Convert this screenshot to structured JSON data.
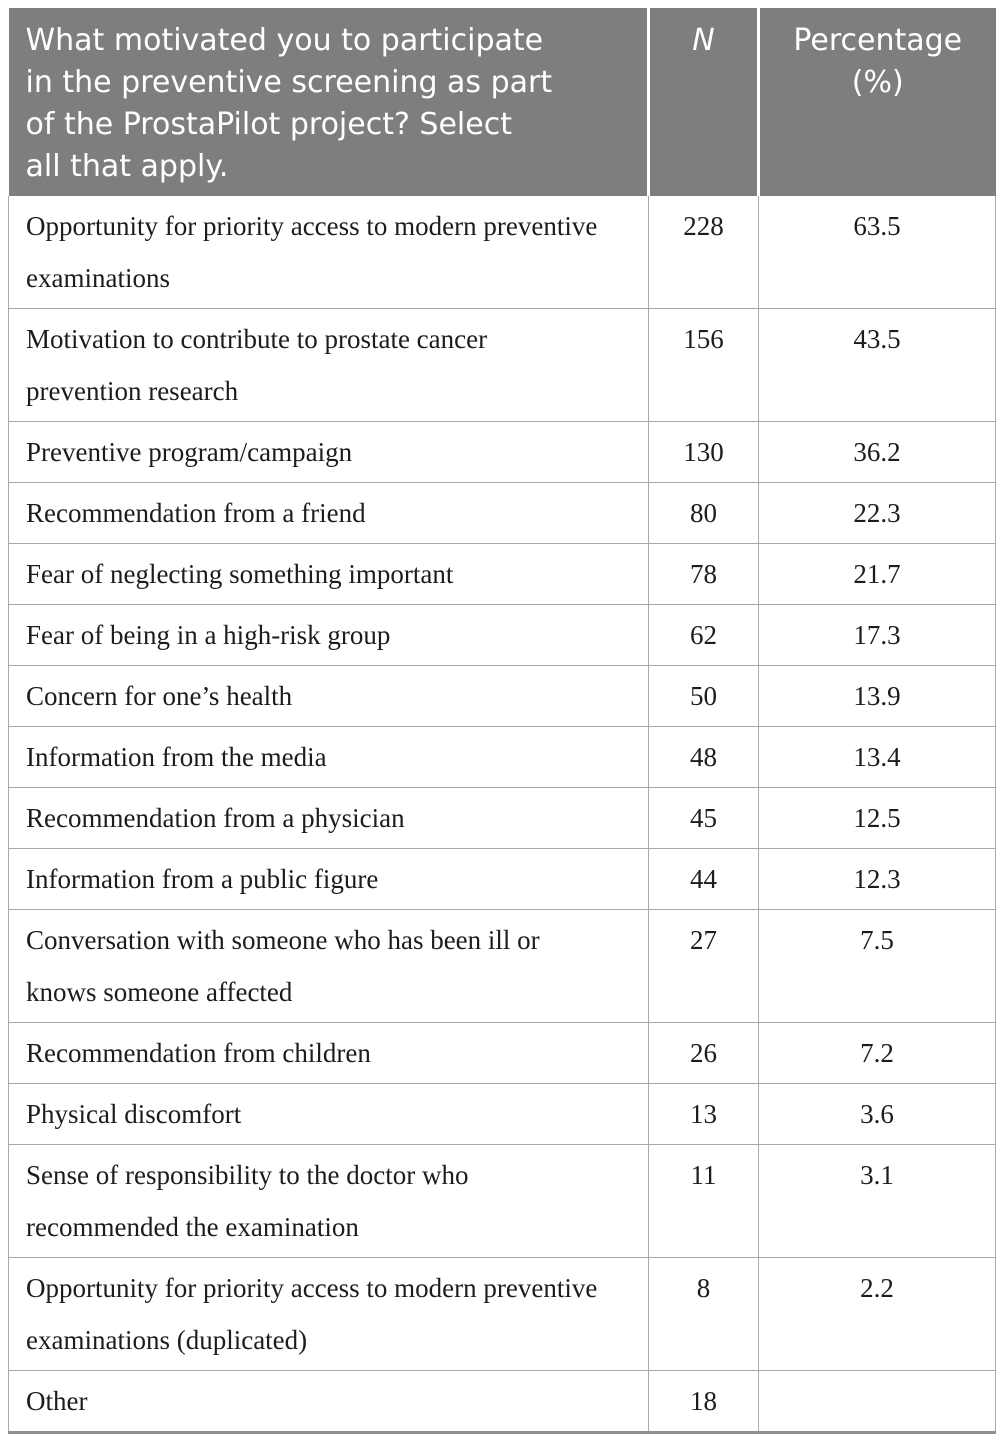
{
  "colors": {
    "header_bg": "#7e7e7e",
    "header_text": "#ffffff",
    "body_text": "#1c1c1c",
    "grid_border": "#a9a9a9",
    "bottom_border": "#8f8f8f"
  },
  "table": {
    "header": {
      "question": "What motivated you to participate\nin the preventive screening as part\nof the ProstaPilot project? Select\nall that apply.",
      "n_label": "N",
      "percentage_label": "Percentage\n(%)"
    },
    "rows": [
      {
        "label": "Opportunity for priority access to modern preventive examinations",
        "n": "228",
        "percentage": "63.5"
      },
      {
        "label": "Motivation to contribute to prostate cancer prevention research",
        "n": "156",
        "percentage": "43.5"
      },
      {
        "label": "Preventive program/campaign",
        "n": "130",
        "percentage": "36.2"
      },
      {
        "label": "Recommendation from a friend",
        "n": "80",
        "percentage": "22.3"
      },
      {
        "label": "Fear of neglecting something important",
        "n": "78",
        "percentage": "21.7"
      },
      {
        "label": "Fear of being in a high-risk group",
        "n": "62",
        "percentage": "17.3"
      },
      {
        "label": "Concern for one’s health",
        "n": "50",
        "percentage": "13.9"
      },
      {
        "label": "Information from the media",
        "n": "48",
        "percentage": "13.4"
      },
      {
        "label": "Recommendation from a physician",
        "n": "45",
        "percentage": "12.5"
      },
      {
        "label": "Information from a public figure",
        "n": "44",
        "percentage": "12.3"
      },
      {
        "label": "Conversation with someone who has been ill or knows someone affected",
        "n": "27",
        "percentage": "7.5"
      },
      {
        "label": "Recommendation from children",
        "n": "26",
        "percentage": "7.2"
      },
      {
        "label": "Physical discomfort",
        "n": "13",
        "percentage": "3.6"
      },
      {
        "label": "Sense of responsibility to the doctor who recommended the examination",
        "n": "11",
        "percentage": "3.1"
      },
      {
        "label": "Opportunity for priority access to modern preventive examinations (duplicated)",
        "n": "8",
        "percentage": "2.2"
      },
      {
        "label": "Other",
        "n": "18",
        "percentage": ""
      }
    ]
  }
}
